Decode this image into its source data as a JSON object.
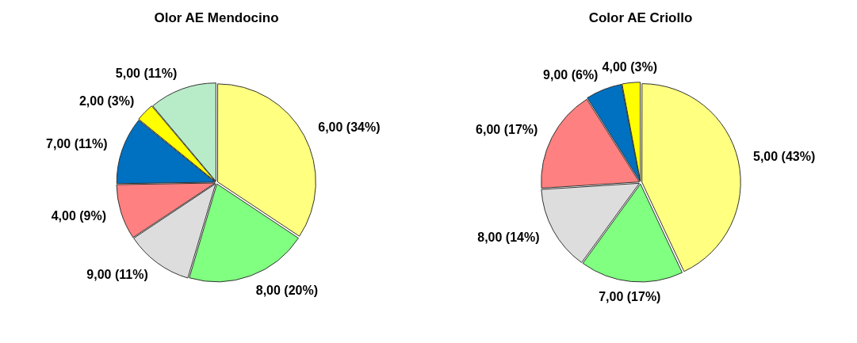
{
  "chart_data": [
    {
      "type": "pie",
      "title": "Olor AE Mendocino",
      "categories": [
        "6,00",
        "8,00",
        "9,00",
        "4,00",
        "7,00",
        "2,00",
        "5,00"
      ],
      "values": [
        34,
        20,
        11,
        9,
        11,
        3,
        11
      ],
      "colors": [
        "#ffff80",
        "#80ff80",
        "#dddddd",
        "#ff8080",
        "#0070c0",
        "#ffff00",
        "#b8ecc8"
      ],
      "value_labels": [
        "(34%)",
        "(20%)",
        "(11%)",
        "(9%)",
        "(11%)",
        "(3%)",
        "(11%)"
      ],
      "legend": false
    },
    {
      "type": "pie",
      "title": "Color AE Criollo",
      "categories": [
        "5,00",
        "7,00",
        "8,00",
        "6,00",
        "9,00",
        "4,00"
      ],
      "values": [
        43,
        17,
        14,
        17,
        6,
        3
      ],
      "colors": [
        "#ffff80",
        "#80ff80",
        "#dddddd",
        "#ff8080",
        "#0070c0",
        "#ffff00"
      ],
      "value_labels": [
        "(43%)",
        "(17%)",
        "(14%)",
        "(17%)",
        "(6%)",
        "(3%)"
      ],
      "legend": false
    }
  ]
}
